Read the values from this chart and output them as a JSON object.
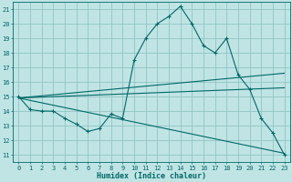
{
  "xlabel": "Humidex (Indice chaleur)",
  "xlim": [
    -0.5,
    23.5
  ],
  "ylim": [
    10.5,
    21.5
  ],
  "yticks": [
    11,
    12,
    13,
    14,
    15,
    16,
    17,
    18,
    19,
    20,
    21
  ],
  "xticks": [
    0,
    1,
    2,
    3,
    4,
    5,
    6,
    7,
    8,
    9,
    10,
    11,
    12,
    13,
    14,
    15,
    16,
    17,
    18,
    19,
    20,
    21,
    22,
    23
  ],
  "bg_color": "#c0e4e4",
  "line_color": "#006868",
  "grid_color": "#90c4c4",
  "series": [
    {
      "x": [
        0,
        1,
        2,
        3,
        4,
        5,
        6,
        7,
        8,
        9,
        10,
        11,
        12,
        13,
        14,
        15,
        16,
        17,
        18,
        19,
        20,
        21,
        22,
        23
      ],
      "y": [
        15.0,
        14.1,
        14.0,
        14.0,
        13.5,
        13.1,
        12.6,
        12.8,
        13.8,
        13.5,
        17.5,
        19.0,
        20.0,
        20.5,
        21.2,
        20.0,
        18.5,
        18.0,
        19.0,
        16.5,
        15.5,
        13.5,
        12.5,
        11.0
      ],
      "has_markers": true
    },
    {
      "x": [
        0,
        23
      ],
      "y": [
        14.9,
        16.6
      ],
      "has_markers": false
    },
    {
      "x": [
        0,
        23
      ],
      "y": [
        14.9,
        15.6
      ],
      "has_markers": false
    },
    {
      "x": [
        0,
        23
      ],
      "y": [
        14.9,
        11.1
      ],
      "has_markers": false
    }
  ]
}
